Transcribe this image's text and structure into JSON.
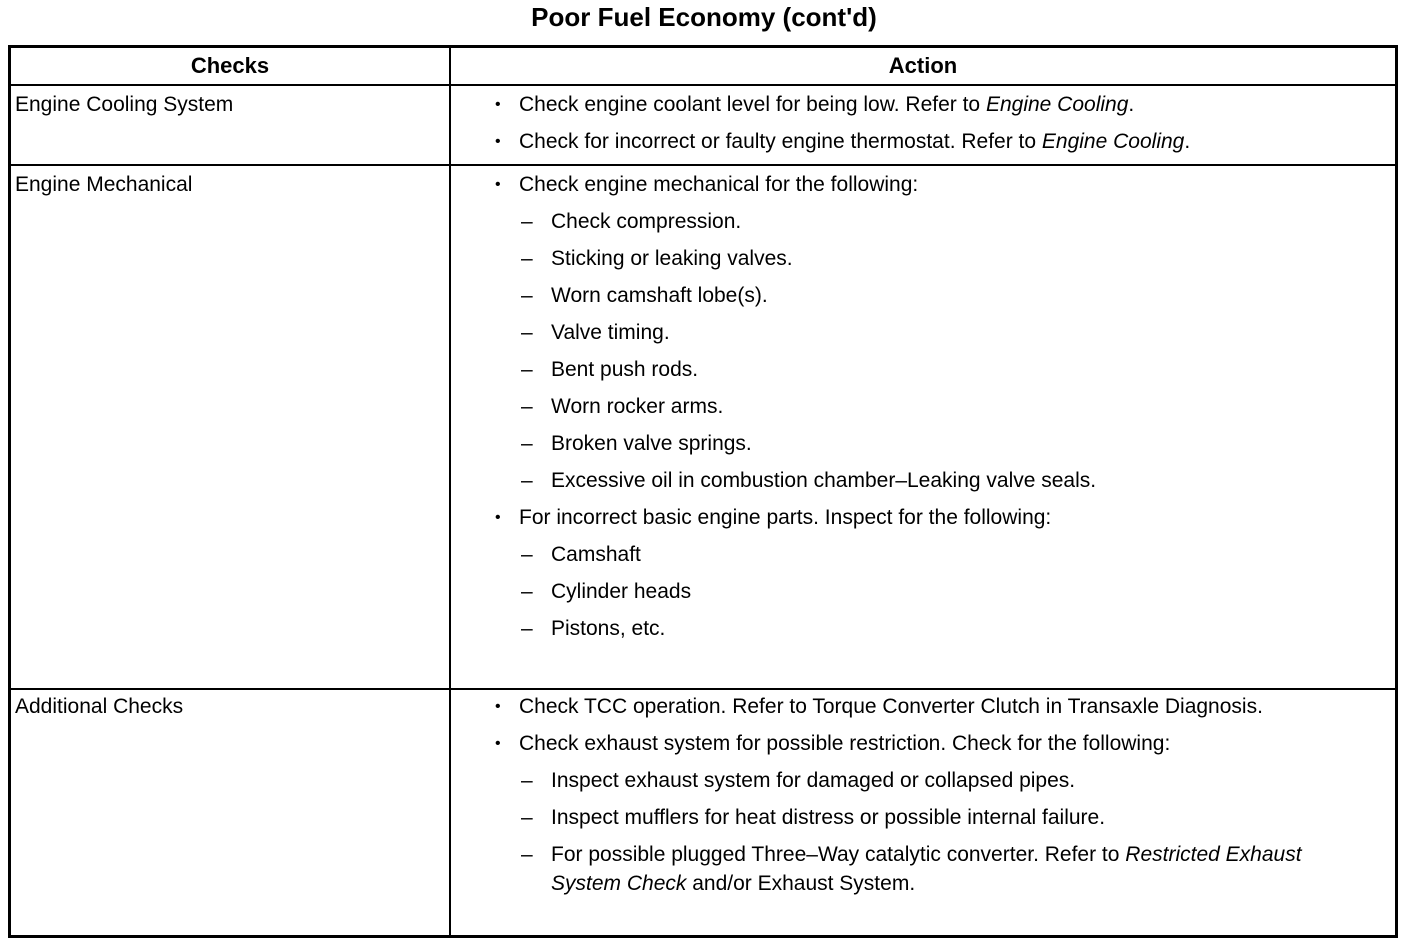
{
  "title": "Poor Fuel Economy (cont'd)",
  "headers": {
    "checks": "Checks",
    "action": "Action"
  },
  "rows": [
    {
      "check": "Engine Cooling System",
      "actions": [
        {
          "type": "bullet",
          "text": "Check engine coolant level for being low. Refer to ",
          "ref": "Engine Cooling",
          "tail": "."
        },
        {
          "type": "bullet",
          "text": "Check for incorrect or faulty engine thermostat. Refer to ",
          "ref": "Engine Cooling",
          "tail": "."
        }
      ]
    },
    {
      "check": "Engine Mechanical",
      "actions": [
        {
          "type": "bullet",
          "text": "Check engine mechanical for the following:"
        },
        {
          "type": "dash",
          "text": "Check compression."
        },
        {
          "type": "dash",
          "text": "Sticking or leaking valves."
        },
        {
          "type": "dash",
          "text": "Worn camshaft lobe(s)."
        },
        {
          "type": "dash",
          "text": "Valve timing."
        },
        {
          "type": "dash",
          "text": "Bent push rods."
        },
        {
          "type": "dash",
          "text": "Worn rocker arms."
        },
        {
          "type": "dash",
          "text": "Broken valve springs."
        },
        {
          "type": "dash",
          "text": "Excessive oil in combustion chamber–Leaking valve seals."
        },
        {
          "type": "bullet",
          "text": "For incorrect basic engine parts. Inspect for the following:"
        },
        {
          "type": "dash",
          "text": "Camshaft"
        },
        {
          "type": "dash",
          "text": "Cylinder heads"
        },
        {
          "type": "dash",
          "text": "Pistons, etc."
        }
      ]
    },
    {
      "check": "Additional Checks",
      "actions": [
        {
          "type": "bullet",
          "text": "Check TCC operation. Refer to Torque Converter Clutch in Transaxle Diagnosis."
        },
        {
          "type": "bullet",
          "text": "Check exhaust system for possible restriction. Check for the following:"
        },
        {
          "type": "dash",
          "text": "Inspect exhaust system for damaged or collapsed pipes."
        },
        {
          "type": "dash",
          "text": "Inspect mufflers for heat distress or possible internal failure."
        },
        {
          "type": "dash",
          "text": "For possible plugged Three–Way catalytic converter. Refer to ",
          "ref": "Restricted Exhaust System Check",
          "tail": " and/or Exhaust System."
        }
      ]
    }
  ]
}
